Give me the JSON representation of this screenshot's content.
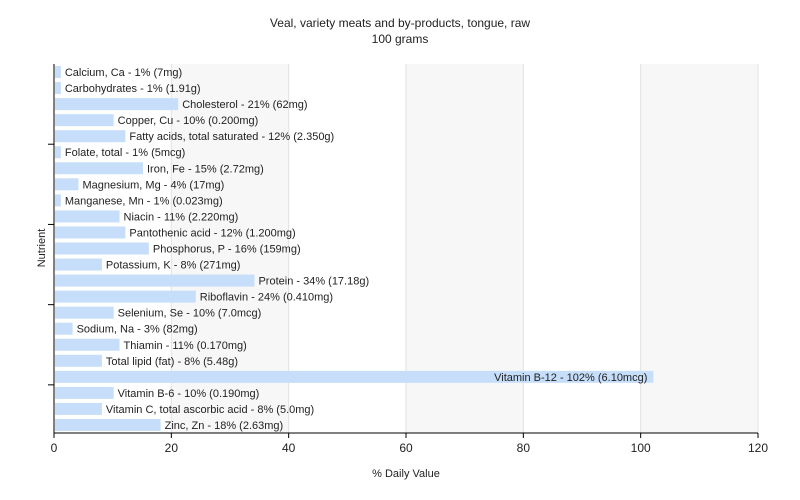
{
  "chart_data": {
    "type": "bar",
    "orientation": "horizontal",
    "title": "Veal, variety meats and by-products, tongue, raw",
    "subtitle": "100 grams",
    "xlabel": "% Daily Value",
    "ylabel": "Nutrient",
    "xlim": [
      0,
      120
    ],
    "xticks": [
      0,
      20,
      40,
      60,
      80,
      100,
      120
    ],
    "grid": true,
    "bar_color": "#c6defa",
    "categories": [
      "Calcium, Ca",
      "Carbohydrates",
      "Cholesterol",
      "Copper, Cu",
      "Fatty acids, total saturated",
      "Folate, total",
      "Iron, Fe",
      "Magnesium, Mg",
      "Manganese, Mn",
      "Niacin",
      "Pantothenic acid",
      "Phosphorus, P",
      "Potassium, K",
      "Protein",
      "Riboflavin",
      "Selenium, Se",
      "Sodium, Na",
      "Thiamin",
      "Total lipid (fat)",
      "Vitamin B-12",
      "Vitamin B-6",
      "Vitamin C, total ascorbic acid",
      "Zinc, Zn"
    ],
    "values": [
      1,
      1,
      21,
      10,
      12,
      1,
      15,
      4,
      1,
      11,
      12,
      16,
      8,
      34,
      24,
      10,
      3,
      11,
      8,
      102,
      10,
      8,
      18
    ],
    "labels": [
      "Calcium, Ca - 1% (7mg)",
      "Carbohydrates - 1% (1.91g)",
      "Cholesterol - 21% (62mg)",
      "Copper, Cu - 10% (0.200mg)",
      "Fatty acids, total saturated - 12% (2.350g)",
      "Folate, total - 1% (5mcg)",
      "Iron, Fe - 15% (2.72mg)",
      "Magnesium, Mg - 4% (17mg)",
      "Manganese, Mn - 1% (0.023mg)",
      "Niacin - 11% (2.220mg)",
      "Pantothenic acid - 12% (1.200mg)",
      "Phosphorus, P - 16% (159mg)",
      "Potassium, K - 8% (271mg)",
      "Protein - 34% (17.18g)",
      "Riboflavin - 24% (0.410mg)",
      "Selenium, Se - 10% (7.0mcg)",
      "Sodium, Na - 3% (82mg)",
      "Thiamin - 11% (0.170mg)",
      "Total lipid (fat) - 8% (5.48g)",
      "Vitamin B-12 - 102% (6.10mcg)",
      "Vitamin B-6 - 10% (0.190mg)",
      "Vitamin C, total ascorbic acid - 8% (5.0mg)",
      "Zinc, Zn - 18% (2.63mg)"
    ]
  }
}
